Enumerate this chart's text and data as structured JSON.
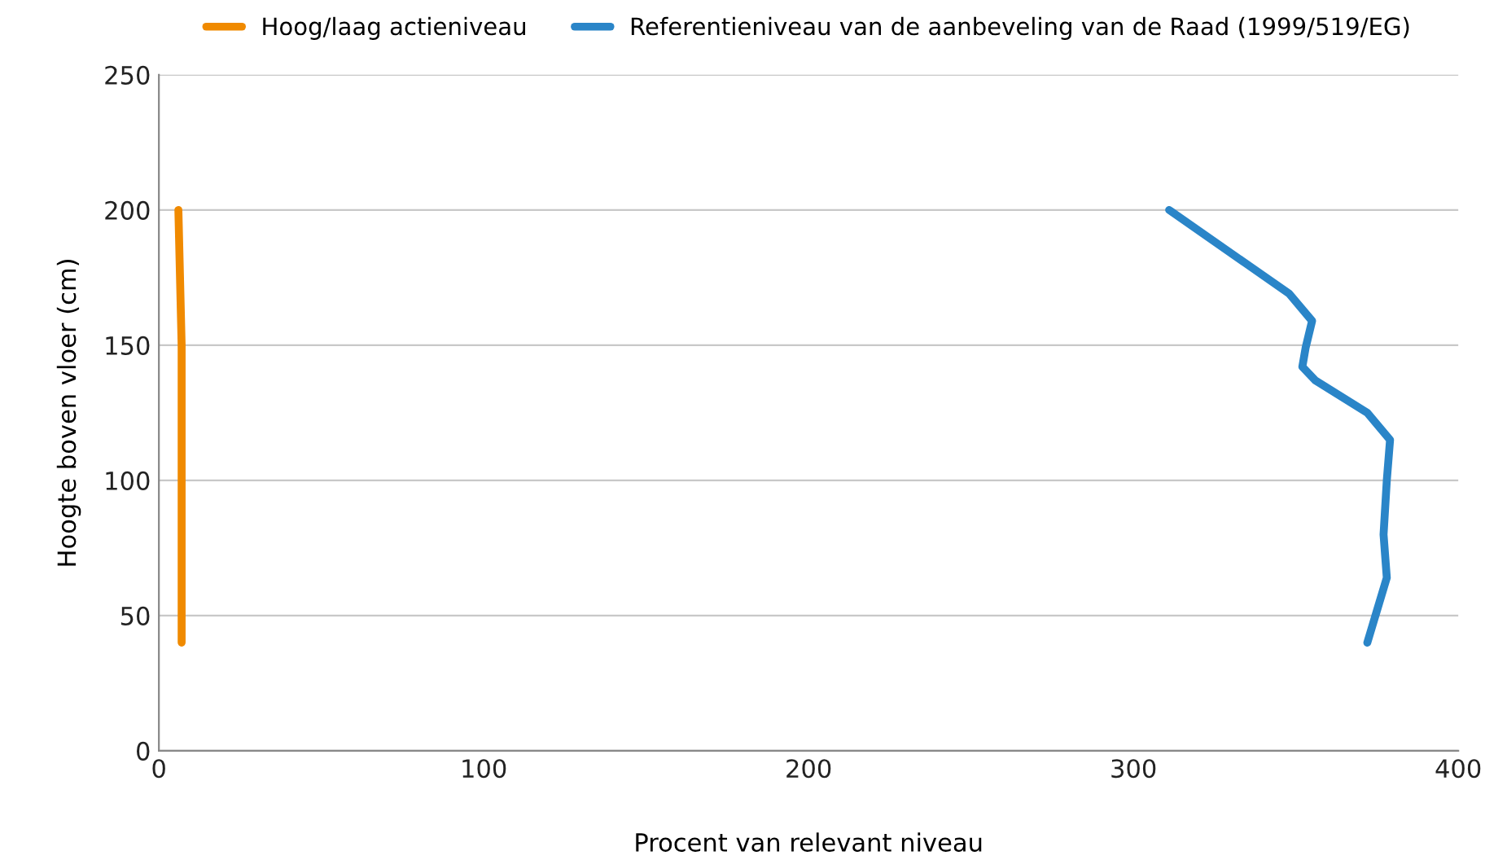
{
  "chart_data": {
    "type": "line",
    "xlabel": "Procent van relevant niveau",
    "ylabel": "Hoogte boven vloer (cm)",
    "xlim": [
      0,
      400
    ],
    "xticks": [
      0,
      100,
      200,
      300,
      400
    ],
    "ylim": [
      0,
      250
    ],
    "yticks": [
      0,
      50,
      100,
      150,
      200,
      250
    ],
    "grid": "y",
    "legend": "top",
    "marker": "none",
    "line_style": "solid",
    "series": [
      {
        "name": "Hoog/laag actieniveau",
        "color": "#f08a00",
        "x": [
          6,
          7,
          7,
          7
        ],
        "values": [
          200,
          150,
          100,
          40
        ]
      },
      {
        "name": "Referentieniveau van de aanbeveling van de Raad (1999/519/EG)",
        "color": "#2a85c8",
        "x": [
          311,
          348,
          355,
          353,
          352,
          356,
          372,
          379,
          378,
          377,
          378,
          375,
          372
        ],
        "values": [
          200,
          169,
          159,
          149,
          142,
          137,
          125,
          115,
          100,
          80,
          64,
          52,
          40
        ]
      }
    ]
  }
}
